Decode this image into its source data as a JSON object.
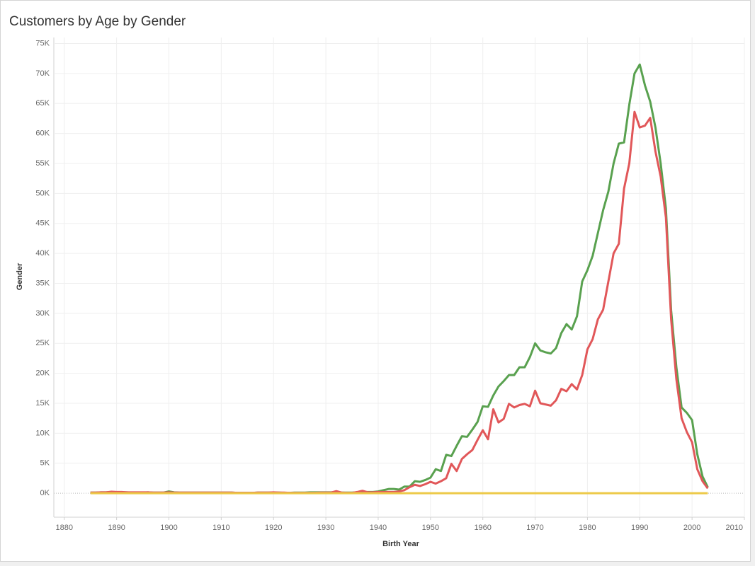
{
  "chart_data": {
    "type": "line",
    "title": "Customers by Age by Gender",
    "x_label": "Birth Year",
    "y_label": "Gender",
    "x": [
      1885,
      1886,
      1887,
      1888,
      1889,
      1890,
      1891,
      1892,
      1893,
      1894,
      1895,
      1896,
      1897,
      1898,
      1899,
      1900,
      1901,
      1902,
      1903,
      1904,
      1905,
      1906,
      1907,
      1908,
      1909,
      1910,
      1911,
      1912,
      1913,
      1914,
      1915,
      1916,
      1917,
      1918,
      1919,
      1920,
      1921,
      1922,
      1923,
      1924,
      1925,
      1926,
      1927,
      1928,
      1929,
      1930,
      1931,
      1932,
      1933,
      1934,
      1935,
      1936,
      1937,
      1938,
      1939,
      1940,
      1941,
      1942,
      1943,
      1944,
      1945,
      1946,
      1947,
      1948,
      1949,
      1950,
      1951,
      1952,
      1953,
      1954,
      1955,
      1956,
      1957,
      1958,
      1959,
      1960,
      1961,
      1962,
      1963,
      1964,
      1965,
      1966,
      1967,
      1968,
      1969,
      1970,
      1971,
      1972,
      1973,
      1974,
      1975,
      1976,
      1977,
      1978,
      1979,
      1980,
      1981,
      1982,
      1983,
      1984,
      1985,
      1986,
      1987,
      1988,
      1989,
      1990,
      1991,
      1992,
      1993,
      1994,
      1995,
      1996,
      1997,
      1998,
      1999,
      2000,
      2001,
      2002,
      2003
    ],
    "series": [
      {
        "color": "#59a14f",
        "values": [
          100,
          100,
          150,
          150,
          200,
          150,
          150,
          150,
          100,
          100,
          100,
          150,
          100,
          100,
          100,
          300,
          150,
          100,
          100,
          100,
          100,
          100,
          100,
          100,
          100,
          100,
          100,
          100,
          50,
          50,
          50,
          50,
          100,
          100,
          100,
          100,
          100,
          50,
          50,
          100,
          100,
          100,
          150,
          150,
          150,
          150,
          150,
          200,
          100,
          100,
          100,
          150,
          200,
          200,
          200,
          300,
          500,
          700,
          700,
          600,
          1100,
          1100,
          2000,
          1900,
          2200,
          2600,
          4000,
          3700,
          6400,
          6200,
          7900,
          9500,
          9400,
          10600,
          11900,
          14500,
          14400,
          16300,
          17800,
          18700,
          19700,
          19700,
          21000,
          21000,
          22700,
          25000,
          23800,
          23500,
          23300,
          24200,
          26700,
          28200,
          27300,
          29500,
          35300,
          37200,
          39600,
          43400,
          47200,
          50300,
          55000,
          58300,
          58500,
          64800,
          70000,
          71500,
          68000,
          65300,
          61000,
          55000,
          47500,
          30500,
          21000,
          14300,
          13400,
          12200,
          6500,
          2800,
          1000
        ]
      },
      {
        "color": "#e15759",
        "values": [
          100,
          100,
          150,
          150,
          250,
          200,
          200,
          150,
          150,
          150,
          150,
          150,
          100,
          100,
          100,
          150,
          100,
          100,
          100,
          100,
          100,
          100,
          100,
          100,
          100,
          100,
          100,
          100,
          50,
          50,
          50,
          50,
          100,
          100,
          100,
          150,
          100,
          100,
          50,
          50,
          50,
          50,
          50,
          50,
          100,
          100,
          100,
          350,
          100,
          50,
          50,
          200,
          400,
          150,
          150,
          200,
          200,
          200,
          200,
          300,
          500,
          1000,
          1400,
          1200,
          1500,
          1900,
          1600,
          2000,
          2500,
          4900,
          3700,
          5700,
          6500,
          7200,
          8900,
          10500,
          9000,
          14000,
          11800,
          12400,
          14900,
          14300,
          14700,
          14900,
          14500,
          17100,
          15000,
          14800,
          14600,
          15500,
          17400,
          17000,
          18200,
          17300,
          19700,
          24000,
          25700,
          29000,
          30600,
          35300,
          40000,
          41600,
          50800,
          55000,
          63600,
          61000,
          61300,
          62600,
          57000,
          52800,
          46000,
          29000,
          19000,
          12500,
          10200,
          8500,
          4000,
          2000,
          800
        ]
      },
      {
        "color": "#edc948",
        "values": [
          0,
          0,
          0,
          0,
          0,
          0,
          0,
          0,
          0,
          0,
          0,
          0,
          0,
          0,
          0,
          0,
          0,
          0,
          0,
          0,
          0,
          0,
          0,
          0,
          0,
          0,
          0,
          0,
          0,
          0,
          0,
          0,
          0,
          0,
          0,
          0,
          0,
          0,
          0,
          0,
          0,
          0,
          0,
          0,
          0,
          0,
          0,
          0,
          0,
          0,
          0,
          0,
          0,
          0,
          0,
          0,
          0,
          0,
          0,
          0,
          0,
          0,
          0,
          0,
          0,
          0,
          0,
          0,
          0,
          0,
          0,
          0,
          0,
          0,
          0,
          0,
          0,
          0,
          0,
          0,
          0,
          0,
          0,
          0,
          0,
          0,
          0,
          0,
          0,
          0,
          0,
          0,
          0,
          0,
          0,
          0,
          0,
          0,
          0,
          0,
          0,
          0,
          0,
          0,
          0,
          0,
          0,
          0,
          0,
          0,
          0,
          0,
          0,
          0,
          0,
          0,
          0,
          0,
          0
        ]
      }
    ],
    "xlim": [
      1878,
      2010
    ],
    "xticks": [
      1880,
      1890,
      1900,
      1910,
      1920,
      1930,
      1940,
      1950,
      1960,
      1970,
      1980,
      1990,
      2000,
      2010
    ],
    "ylim": [
      -4000,
      76000
    ],
    "yticks": [
      {
        "value": 0,
        "label": "0K"
      },
      {
        "value": 5000,
        "label": "5K"
      },
      {
        "value": 10000,
        "label": "10K"
      },
      {
        "value": 15000,
        "label": "15K"
      },
      {
        "value": 20000,
        "label": "20K"
      },
      {
        "value": 25000,
        "label": "25K"
      },
      {
        "value": 30000,
        "label": "30K"
      },
      {
        "value": 35000,
        "label": "35K"
      },
      {
        "value": 40000,
        "label": "40K"
      },
      {
        "value": 45000,
        "label": "45K"
      },
      {
        "value": 50000,
        "label": "50K"
      },
      {
        "value": 55000,
        "label": "55K"
      },
      {
        "value": 60000,
        "label": "60K"
      },
      {
        "value": 65000,
        "label": "65K"
      },
      {
        "value": 70000,
        "label": "70K"
      },
      {
        "value": 75000,
        "label": "75K"
      }
    ],
    "grid": true
  }
}
